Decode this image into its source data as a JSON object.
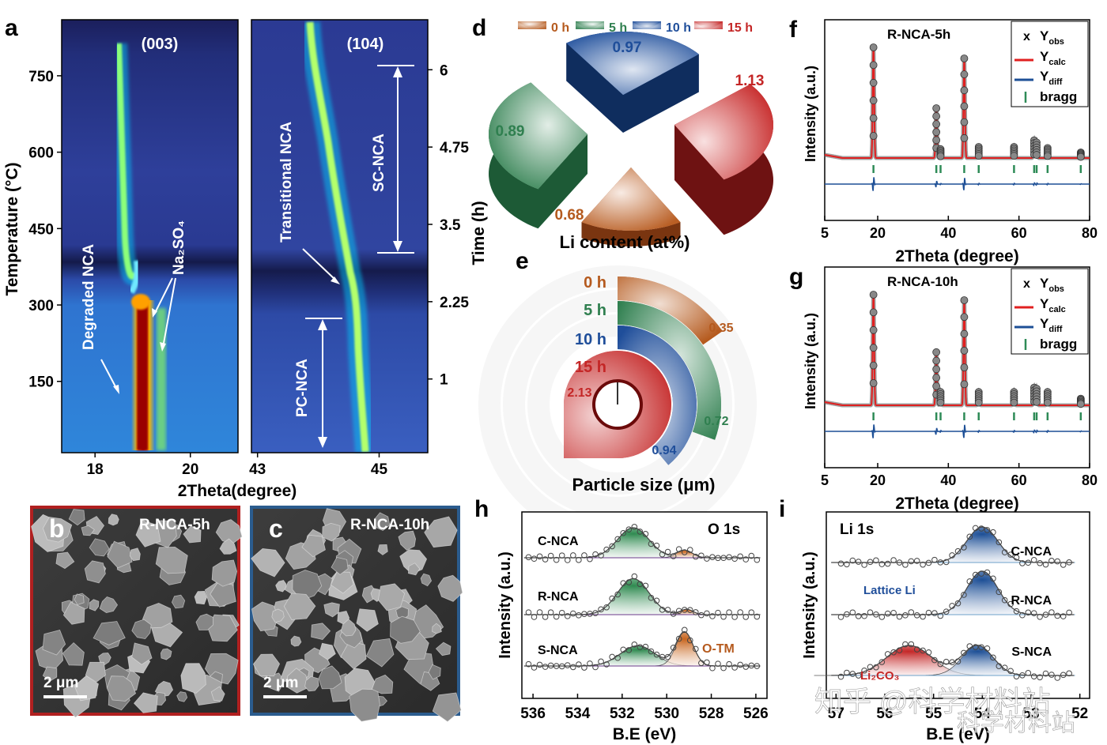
{
  "colors": {
    "c0": "#b55a1e",
    "c5": "#2f7f4f",
    "c10": "#1f4e9a",
    "c15": "#c42626",
    "calc": "#e02020",
    "diff": "#1d4f96",
    "bragg": "#2e8b57",
    "frame_b": "#b02020",
    "frame_c": "#2b5c8e"
  },
  "panel_a": {
    "label": "a",
    "left_peak": "(003)",
    "right_peak": "(104)",
    "ylabel_left": "Temperature (°C)",
    "ylabel_right": "Time (h)",
    "xlabel": "2Theta(degree)",
    "temp_ticks": [
      "750",
      "600",
      "450",
      "300",
      "150"
    ],
    "time_ticks": [
      "6",
      "4.75",
      "3.5",
      "2.25",
      "1"
    ],
    "x_ticks_left": [
      "18",
      "20"
    ],
    "x_ticks_right": [
      "43",
      "45"
    ],
    "ann_degraded": "Degraded NCA",
    "ann_na2so4": "Na₂SO₄",
    "ann_transitional": "Transitional NCA",
    "ann_sc": "SC-NCA",
    "ann_pc": "PC-NCA"
  },
  "panel_b": {
    "label": "b",
    "title": "R-NCA-5h",
    "scale": "2 μm"
  },
  "panel_c": {
    "label": "c",
    "title": "R-NCA-10h",
    "scale": "2 μm"
  },
  "panel_d": {
    "label": "d",
    "xlabel": "Li content (at%)"
  },
  "panel_e": {
    "label": "e",
    "xlabel": "Particle size (μm)"
  },
  "panel_f": {
    "label": "f",
    "title": "R-NCA-5h",
    "ylabel": "Intensity (a.u.)",
    "xlabel": "2Theta (degree)",
    "x_ticks": [
      "5",
      "20",
      "40",
      "60",
      "80"
    ],
    "legend": {
      "obs_marker": "x",
      "obs": "Y",
      "obs_sub": "obs",
      "calc": "Y",
      "calc_sub": "calc",
      "diff": "Y",
      "diff_sub": "diff",
      "bragg": "bragg"
    }
  },
  "panel_g": {
    "label": "g",
    "title": "R-NCA-10h",
    "ylabel": "Intensity (a.u.)",
    "xlabel": "2Theta (degree)",
    "x_ticks": [
      "5",
      "20",
      "40",
      "60",
      "80"
    ],
    "legend": {
      "obs_marker": "x",
      "obs": "Y",
      "obs_sub": "obs",
      "calc": "Y",
      "calc_sub": "calc",
      "diff": "Y",
      "diff_sub": "diff",
      "bragg": "bragg"
    }
  },
  "panel_h": {
    "label": "h",
    "title": "O 1s",
    "ylabel": "Intensity (a.u.)",
    "xlabel": "B.E (eV)",
    "x_ticks": [
      "536",
      "534",
      "532",
      "530",
      "528",
      "526"
    ],
    "samples": [
      "C-NCA",
      "R-NCA",
      "S-NCA"
    ],
    "ann_otm": "O-TM"
  },
  "panel_i": {
    "label": "i",
    "title": "Li 1s",
    "ylabel": "Intensity (a.u.)",
    "xlabel": "B.E (eV)",
    "x_ticks": [
      "57",
      "56",
      "55",
      "54",
      "53",
      "52"
    ],
    "samples": [
      "C-NCA",
      "R-NCA",
      "S-NCA"
    ],
    "ann_lattice": "Lattice Li",
    "ann_li2co3": "Li₂CO₃"
  },
  "watermark": {
    "line1": "知乎 @科学材料站",
    "line2": "科学材料站"
  },
  "chart_data": [
    {
      "type": "heatmap",
      "panel": "a",
      "title": "(003)",
      "xlabel": "2Theta(degree)",
      "ylabel": "Temperature (°C)",
      "xlim": [
        17.3,
        21.0
      ],
      "ylim": [
        10,
        860
      ],
      "series": [
        {
          "name": "Na₂SO₄",
          "x_approx": 18.9,
          "y_range": [
            10,
            330
          ]
        }
      ]
    },
    {
      "type": "heatmap",
      "panel": "a",
      "title": "(104)",
      "xlabel": "2Theta(degree)",
      "ylabel": "Time (h)",
      "xlim": [
        42.9,
        45.8
      ],
      "ylim": [
        0,
        7
      ],
      "time_ticks": [
        1,
        2.25,
        3.5,
        4.75,
        6
      ],
      "annotations": [
        {
          "text": "SC-NCA",
          "time_range": [
            3.5,
            6.5
          ]
        },
        {
          "text": "PC-NCA",
          "time_range": [
            0,
            2.25
          ]
        }
      ]
    },
    {
      "type": "pie",
      "panel": "d",
      "xlabel": "Li content (at%)",
      "categories": [
        "0 h",
        "5 h",
        "10 h",
        "15 h"
      ],
      "values": [
        0.68,
        0.89,
        0.97,
        1.13
      ]
    },
    {
      "type": "pie",
      "panel": "e",
      "xlabel": "Particle size (μm)",
      "categories": [
        "0 h",
        "5 h",
        "10 h",
        "15 h"
      ],
      "values": [
        0.35,
        0.72,
        0.94,
        2.13
      ]
    },
    {
      "type": "line",
      "panel": "f",
      "title": "R-NCA-5h",
      "xlabel": "2Theta (degree)",
      "ylabel": "Intensity (a.u.)",
      "xlim": [
        5,
        80
      ],
      "peaks": [
        {
          "x": 18.8,
          "rel": 1.0
        },
        {
          "x": 36.6,
          "rel": 0.45
        },
        {
          "x": 37.8,
          "rel": 0.08
        },
        {
          "x": 44.5,
          "rel": 0.9
        },
        {
          "x": 48.6,
          "rel": 0.1
        },
        {
          "x": 58.6,
          "rel": 0.1
        },
        {
          "x": 64.3,
          "rel": 0.16
        },
        {
          "x": 65.0,
          "rel": 0.14
        },
        {
          "x": 68.1,
          "rel": 0.09
        },
        {
          "x": 77.5,
          "rel": 0.05
        }
      ],
      "series": [
        {
          "name": "Y obs"
        },
        {
          "name": "Y calc"
        },
        {
          "name": "Y diff"
        },
        {
          "name": "bragg"
        }
      ]
    },
    {
      "type": "line",
      "panel": "g",
      "title": "R-NCA-10h",
      "xlabel": "2Theta (degree)",
      "ylabel": "Intensity (a.u.)",
      "xlim": [
        5,
        80
      ],
      "peaks": [
        {
          "x": 18.8,
          "rel": 1.0
        },
        {
          "x": 36.6,
          "rel": 0.48
        },
        {
          "x": 37.8,
          "rel": 0.12
        },
        {
          "x": 44.5,
          "rel": 0.95
        },
        {
          "x": 48.6,
          "rel": 0.12
        },
        {
          "x": 58.6,
          "rel": 0.12
        },
        {
          "x": 64.3,
          "rel": 0.16
        },
        {
          "x": 65.0,
          "rel": 0.15
        },
        {
          "x": 68.1,
          "rel": 0.12
        },
        {
          "x": 77.5,
          "rel": 0.06
        }
      ],
      "series": [
        {
          "name": "Y obs"
        },
        {
          "name": "Y calc"
        },
        {
          "name": "Y diff"
        },
        {
          "name": "bragg"
        }
      ]
    },
    {
      "type": "line",
      "panel": "h",
      "title": "O 1s",
      "xlabel": "B.E (eV)",
      "ylabel": "Intensity (a.u.)",
      "xlim": [
        536.5,
        525.5
      ],
      "series": [
        {
          "name": "C-NCA",
          "components": [
            {
              "center": 531.5,
              "height": 0.4,
              "width": 1.0
            },
            {
              "center": 529.2,
              "height": 0.1,
              "width": 0.5
            }
          ]
        },
        {
          "name": "R-NCA",
          "components": [
            {
              "center": 531.5,
              "height": 0.48,
              "width": 1.0
            },
            {
              "center": 529.1,
              "height": 0.07,
              "width": 0.4
            }
          ]
        },
        {
          "name": "S-NCA",
          "components": [
            {
              "center": 531.3,
              "height": 0.27,
              "width": 1.1
            },
            {
              "center": 529.2,
              "height": 0.45,
              "width": 0.55
            }
          ]
        }
      ]
    },
    {
      "type": "line",
      "panel": "i",
      "title": "Li 1s",
      "xlabel": "B.E (eV)",
      "ylabel": "Intensity (a.u.)",
      "xlim": [
        57.2,
        51.8
      ],
      "series": [
        {
          "name": "C-NCA",
          "components": [
            {
              "center": 54.0,
              "height": 0.45,
              "width": 0.45
            }
          ]
        },
        {
          "name": "R-NCA",
          "components": [
            {
              "center": 54.0,
              "height": 0.55,
              "width": 0.45
            }
          ]
        },
        {
          "name": "S-NCA",
          "components": [
            {
              "center": 55.5,
              "height": 0.38,
              "width": 0.65
            },
            {
              "center": 54.1,
              "height": 0.38,
              "width": 0.45
            }
          ]
        }
      ]
    }
  ]
}
